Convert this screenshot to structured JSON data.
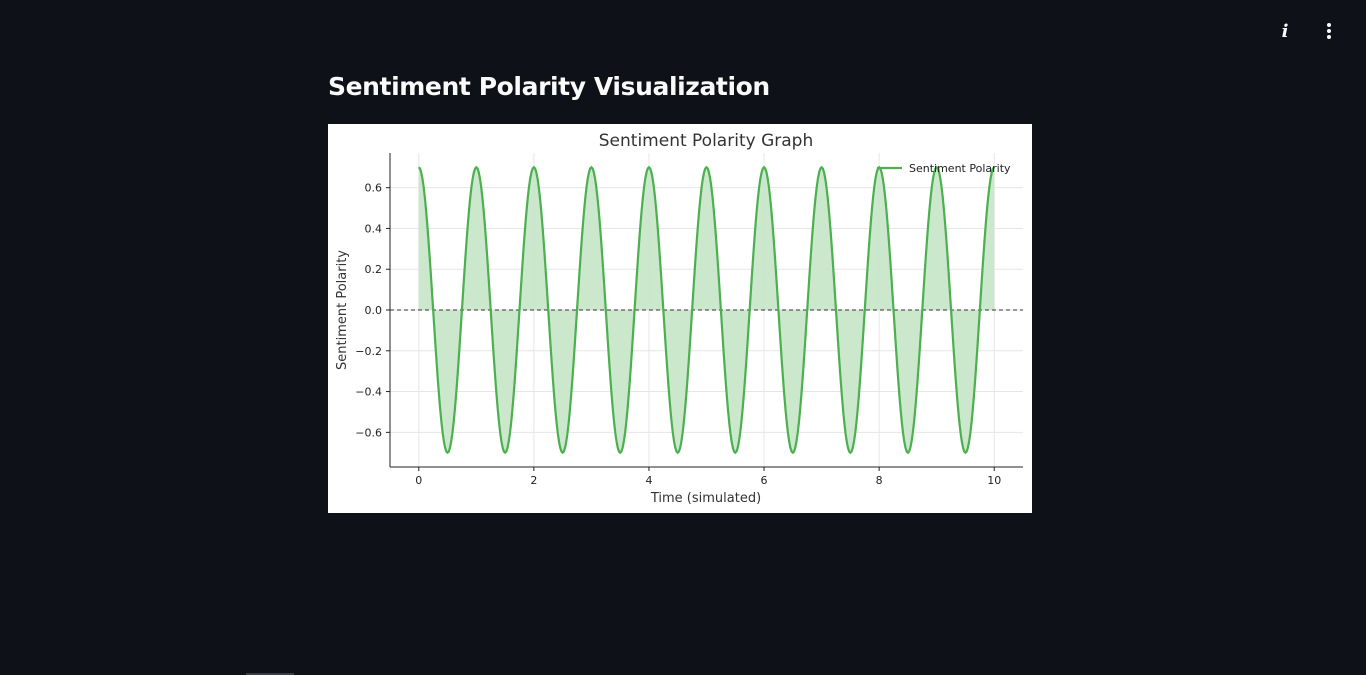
{
  "page": {
    "title": "Sentiment Polarity Visualization"
  },
  "toolbar": {
    "info_icon": "info-icon",
    "menu_icon": "kebab-menu-icon"
  },
  "colors": {
    "background": "#0e1117",
    "line": "#4caf50",
    "fill": "#c8e6c9"
  },
  "chart_data": {
    "type": "area",
    "title": "Sentiment Polarity Graph",
    "xlabel": "Time (simulated)",
    "ylabel": "Sentiment Polarity",
    "xlim": [
      -0.5,
      10.5
    ],
    "ylim": [
      -0.77,
      0.77
    ],
    "xticks": [
      0,
      2,
      4,
      6,
      8,
      10
    ],
    "yticks": [
      -0.6,
      -0.4,
      -0.2,
      0.0,
      0.2,
      0.4,
      0.6
    ],
    "ytick_labels": [
      "−0.6",
      "−0.4",
      "−0.2",
      "0.0",
      "0.2",
      "0.4",
      "0.6"
    ],
    "grid": true,
    "legend_position": "top-right",
    "reference_line": {
      "y": 0.0,
      "style": "dashed"
    },
    "series": [
      {
        "name": "Sentiment Polarity",
        "fill_to_zero": true,
        "x": [
          0,
          0.25,
          0.5,
          0.75,
          1,
          1.25,
          1.5,
          1.75,
          2,
          2.25,
          2.5,
          2.75,
          3,
          3.25,
          3.5,
          3.75,
          4,
          4.25,
          4.5,
          4.75,
          5,
          5.25,
          5.5,
          5.75,
          6,
          6.25,
          6.5,
          6.75,
          7,
          7.25,
          7.5,
          7.75,
          8,
          8.25,
          8.5,
          8.75,
          9,
          9.25,
          9.5,
          9.75,
          10
        ],
        "y": [
          0.7,
          0.0,
          -0.7,
          0.0,
          0.7,
          0.0,
          -0.7,
          0.0,
          0.7,
          0.0,
          -0.7,
          0.0,
          0.7,
          0.0,
          -0.7,
          0.0,
          0.7,
          0.0,
          -0.7,
          0.0,
          0.7,
          0.0,
          -0.7,
          0.0,
          0.7,
          0.0,
          -0.7,
          0.0,
          0.7,
          0.0,
          -0.7,
          0.0,
          0.7,
          0.0,
          -0.7,
          0.0,
          0.7,
          0.0,
          -0.7,
          0.0,
          0.7
        ]
      }
    ]
  }
}
